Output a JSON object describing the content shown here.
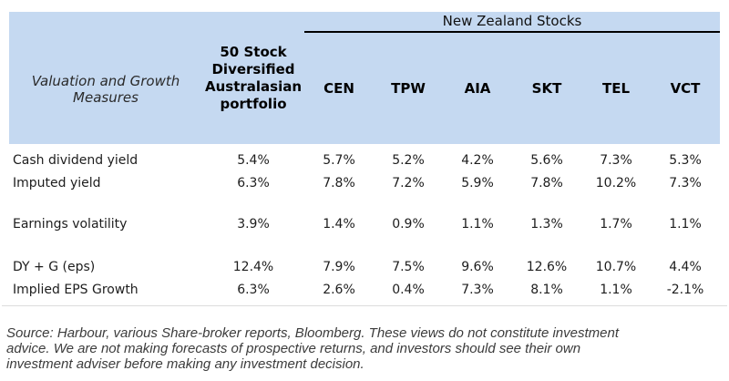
{
  "header": {
    "measures_label": "Valuation and Growth Measures",
    "portfolio_label": "50 Stock Diversified Australasian portfolio",
    "group_label": "New Zealand Stocks",
    "tickers": [
      "CEN",
      "TPW",
      "AIA",
      "SKT",
      "TEL",
      "VCT"
    ]
  },
  "rows": [
    {
      "label": "Cash dividend yield",
      "portfolio": "5.4%",
      "values": [
        "5.7%",
        "5.2%",
        "4.2%",
        "5.6%",
        "7.3%",
        "5.3%"
      ]
    },
    {
      "label": "Imputed yield",
      "portfolio": "6.3%",
      "values": [
        "7.8%",
        "7.2%",
        "5.9%",
        "7.8%",
        "10.2%",
        "7.3%"
      ]
    },
    {
      "label": "Earnings volatility",
      "portfolio": "3.9%",
      "values": [
        "1.4%",
        "0.9%",
        "1.1%",
        "1.3%",
        "1.7%",
        "1.1%"
      ]
    },
    {
      "label": "DY + G (eps)",
      "portfolio": "12.4%",
      "values": [
        "7.9%",
        "7.5%",
        "9.6%",
        "12.6%",
        "10.7%",
        "4.4%"
      ]
    },
    {
      "label": "Implied EPS Growth",
      "portfolio": "6.3%",
      "values": [
        "2.6%",
        "0.4%",
        "7.3%",
        "8.1%",
        "1.1%",
        "-2.1%"
      ]
    }
  ],
  "footnote": {
    "lines": [
      "Source: Harbour, various Share-broker reports, Bloomberg. These views do not constitute investment",
      "advice. We are not making forecasts of prospective returns, and investors should see their own",
      "investment adviser before making any investment decision."
    ]
  },
  "colors": {
    "header_bg": "#c5d9f1",
    "rule_black": "#000000",
    "rule_light": "#dcdcdc"
  }
}
